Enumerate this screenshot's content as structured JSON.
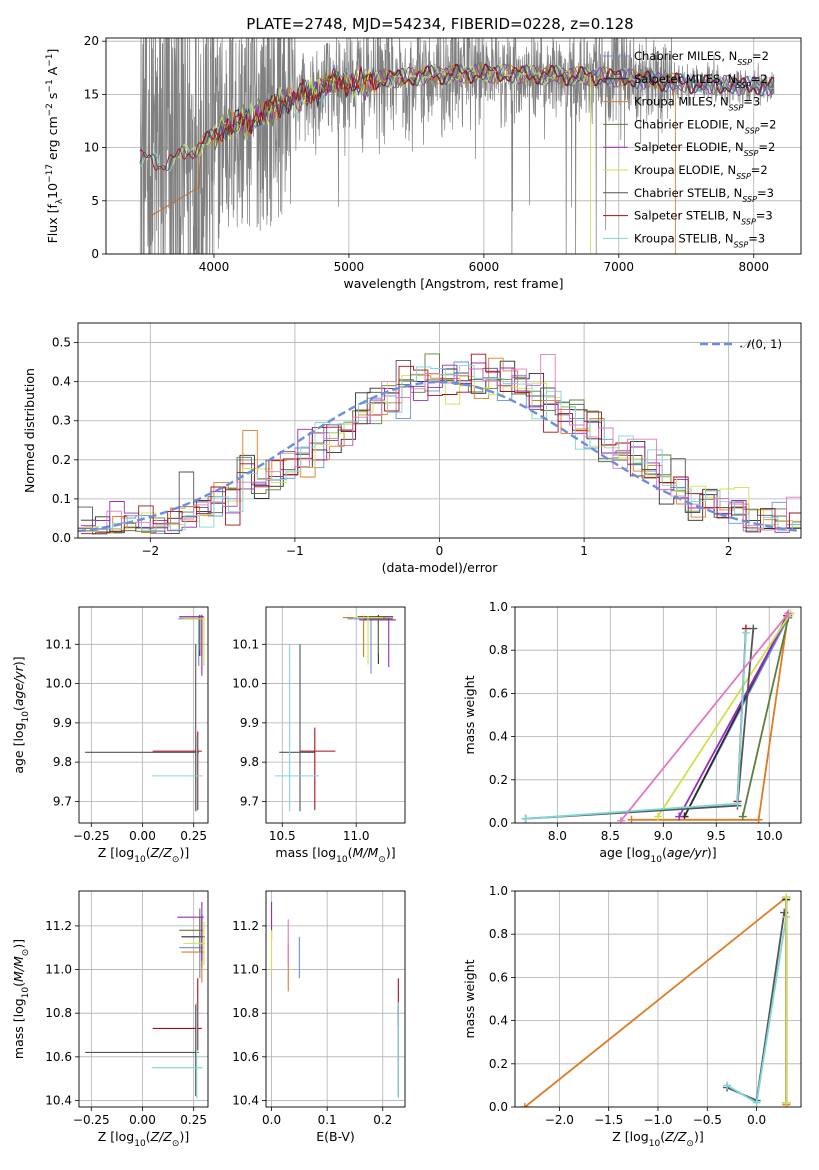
{
  "figure": {
    "title": "PLATE=2748, MJD=54234, FIBERID=0228, z=0.128"
  },
  "colors": {
    "Chabrier MILES": "#6a8fdc",
    "Salpeter MILES": "#2b2b2b",
    "Kroupa MILES": "#e07b24",
    "Chabrier ELODIE": "#5b7f3a",
    "Salpeter ELODIE": "#9a2bbd",
    "Kroupa ELODIE": "#cfe24a",
    "Chabrier STELIB": "#555555",
    "Salpeter STELIB": "#a3101a",
    "Kroupa STELIB": "#7fd6d6",
    "data": "#808080",
    "normal": "#6a8fdc"
  },
  "chart_data": [
    {
      "id": "spectrum",
      "type": "line",
      "xlabel": "wavelength [Angstrom, rest frame]",
      "ylabel": "Flux [f_λ 10^-17 erg cm^-2 s^-1 A^-1]",
      "xlim": [
        3200,
        8350
      ],
      "ylim": [
        0,
        20.3
      ],
      "xticks": [
        4000,
        5000,
        6000,
        7000,
        8000
      ],
      "yticks": [
        0,
        5,
        10,
        15,
        20
      ],
      "legend_position": "top-right",
      "legend": [
        "Chabrier MILES, N_SSP=2",
        "Salpeter MILES, N_SSP=2",
        "Kroupa MILES, N_SSP=3",
        "Chabrier ELODIE, N_SSP=2",
        "Salpeter ELODIE, N_SSP=2",
        "Kroupa ELODIE, N_SSP=2",
        "Chabrier STELIB, N_SSP=3",
        "Salpeter STELIB, N_SSP=3",
        "Kroupa STELIB, N_SSP=3"
      ],
      "data_range": [
        3450,
        8150
      ],
      "model_continuum": {
        "x": [
          3450,
          3600,
          3700,
          3800,
          3900,
          4000,
          4100,
          4300,
          4500,
          4700,
          4900,
          5100,
          5300,
          5600,
          6000,
          6500,
          7000,
          7500,
          8000,
          8150
        ],
        "y": [
          9.0,
          8.5,
          8.8,
          9.5,
          10.2,
          11.0,
          12.0,
          12.8,
          14.2,
          15.0,
          16.2,
          16.0,
          16.5,
          16.8,
          17.0,
          16.8,
          16.6,
          16.0,
          15.8,
          15.7
        ]
      },
      "model_start_x": {
        "Kroupa STELIB": 3450,
        "Chabrier MILES": 3520,
        "Salpeter MILES": 3520,
        "Kroupa MILES": 3520,
        "Chabrier ELODIE": 4000,
        "Salpeter ELODIE": 4000,
        "Kroupa ELODIE": 3700,
        "Chabrier STELIB": 3450,
        "Salpeter STELIB": 3450
      },
      "model_cut_x": {
        "Kroupa ELODIE": 6790,
        "Kroupa MILES": 7420
      }
    },
    {
      "id": "residuals",
      "type": "histogram",
      "xlabel": "(data-model)/error",
      "ylabel": "Normed distribution",
      "xlim": [
        -2.5,
        2.5
      ],
      "ylim": [
        0,
        0.55
      ],
      "xticks": [
        -2,
        -1,
        0,
        1,
        2
      ],
      "yticks": [
        0.0,
        0.1,
        0.2,
        0.3,
        0.4,
        0.5
      ],
      "bin_width": 0.1,
      "legend_position": "top-right",
      "normal_label": "N(0,1)",
      "normal_mu": 0,
      "normal_sigma": 1
    },
    {
      "id": "age-vs-Z",
      "type": "errorbar",
      "xlabel": "Z [log10(Z/Z⊙)]",
      "ylabel": "age [log10(age/yr)]",
      "xlim": [
        -0.31,
        0.32
      ],
      "ylim": [
        9.645,
        10.195
      ],
      "xticks": [
        -0.25,
        0.0,
        0.25
      ],
      "xticklabels": [
        "−0.25",
        "0.00",
        "0.25"
      ],
      "yticks": [
        9.7,
        9.8,
        9.9,
        10.0,
        10.1
      ],
      "points": [
        {
          "model": "Chabrier MILES",
          "x": 0.275,
          "y": 10.165,
          "xerr": [
            0.1,
            0.015
          ],
          "yerr": [
            0.12,
            0.005
          ]
        },
        {
          "model": "Salpeter MILES",
          "x": 0.28,
          "y": 10.17,
          "xerr": [
            0.1,
            0.015
          ],
          "yerr": [
            0.1,
            0.005
          ]
        },
        {
          "model": "Kroupa MILES",
          "x": 0.29,
          "y": 10.17,
          "xerr": [
            0.1,
            0.01
          ],
          "yerr": [
            0.1,
            0.005
          ]
        },
        {
          "model": "Chabrier ELODIE",
          "x": 0.28,
          "y": 10.165,
          "xerr": [
            0.08,
            0.015
          ],
          "yerr": [
            0.08,
            0.005
          ]
        },
        {
          "model": "Salpeter ELODIE",
          "x": 0.29,
          "y": 10.17,
          "xerr": [
            0.1,
            0.01
          ],
          "yerr": [
            0.15,
            0.005
          ]
        },
        {
          "model": "Kroupa ELODIE",
          "x": 0.3,
          "y": 10.165,
          "xerr": [
            0.1,
            0.005
          ],
          "yerr": [
            0.12,
            0.005
          ]
        },
        {
          "model": "Chabrier STELIB",
          "x": 0.26,
          "y": 9.825,
          "xerr": [
            0.54,
            0.015
          ],
          "yerr": [
            0.15,
            0.275
          ]
        },
        {
          "model": "Salpeter STELIB",
          "x": 0.27,
          "y": 9.828,
          "xerr": [
            0.22,
            0.02
          ],
          "yerr": [
            0.15,
            0.05
          ]
        },
        {
          "model": "Kroupa STELIB",
          "x": 0.265,
          "y": 9.765,
          "xerr": [
            0.22,
            0.03
          ],
          "yerr": [
            0.09,
            0.1
          ]
        }
      ]
    },
    {
      "id": "age-vs-mass",
      "type": "errorbar",
      "xlabel": "mass [log10(M/M⊙)]",
      "ylabel": "",
      "xlim": [
        10.39,
        11.33
      ],
      "ylim": [
        9.645,
        10.195
      ],
      "xticks": [
        10.5,
        11.0
      ],
      "xticklabels": [
        "10.5",
        "11.0"
      ],
      "yticks": [
        9.7,
        9.8,
        9.9,
        10.0,
        10.1
      ],
      "points": [
        {
          "model": "Chabrier MILES",
          "x": 11.1,
          "y": 10.165,
          "xerr": [
            0.16,
            0.14
          ],
          "yerr": [
            0.14,
            0.005
          ]
        },
        {
          "model": "Salpeter MILES",
          "x": 11.15,
          "y": 10.17,
          "xerr": [
            0.14,
            0.1
          ],
          "yerr": [
            0.12,
            0.005
          ]
        },
        {
          "model": "Kroupa MILES",
          "x": 11.05,
          "y": 10.168,
          "xerr": [
            0.14,
            0.15
          ],
          "yerr": [
            0.1,
            0.005
          ]
        },
        {
          "model": "Chabrier ELODIE",
          "x": 11.15,
          "y": 10.165,
          "xerr": [
            0.1,
            0.1
          ],
          "yerr": [
            0.09,
            0.005
          ]
        },
        {
          "model": "Salpeter ELODIE",
          "x": 11.22,
          "y": 10.162,
          "xerr": [
            0.2,
            0.05
          ],
          "yerr": [
            0.12,
            0.005
          ]
        },
        {
          "model": "Kroupa ELODIE",
          "x": 11.08,
          "y": 10.168,
          "xerr": [
            0.1,
            0.1
          ],
          "yerr": [
            0.12,
            0.005
          ]
        },
        {
          "model": "Chabrier STELIB",
          "x": 10.62,
          "y": 9.825,
          "xerr": [
            0.14,
            0.1
          ],
          "yerr": [
            0.15,
            0.275
          ]
        },
        {
          "model": "Salpeter STELIB",
          "x": 10.72,
          "y": 9.828,
          "xerr": [
            0.1,
            0.14
          ],
          "yerr": [
            0.15,
            0.06
          ]
        },
        {
          "model": "Kroupa STELIB",
          "x": 10.55,
          "y": 9.765,
          "xerr": [
            0.1,
            0.2
          ],
          "yerr": [
            0.09,
            0.335
          ]
        }
      ]
    },
    {
      "id": "mass-weight-vs-age",
      "type": "line",
      "xlabel": "age [log10(age/yr)]",
      "ylabel": "mass weight",
      "xlim": [
        7.6,
        10.3
      ],
      "ylim": [
        0,
        1
      ],
      "xticks": [
        8.0,
        8.5,
        9.0,
        9.5,
        10.0
      ],
      "xticklabels": [
        "8.0",
        "8.5",
        "9.0",
        "9.5",
        "10.0"
      ],
      "yticks": [
        0.0,
        0.2,
        0.4,
        0.6,
        0.8,
        1.0
      ],
      "series": [
        {
          "model": "Chabrier MILES",
          "x": [
            9.2,
            10.2
          ],
          "y": [
            0.03,
            0.97
          ]
        },
        {
          "model": "Salpeter MILES",
          "x": [
            9.2,
            10.17
          ],
          "y": [
            0.03,
            0.96
          ]
        },
        {
          "model": "Kroupa MILES",
          "x": [
            8.7,
            9.9,
            10.18
          ],
          "y": [
            0.015,
            0.015,
            0.97
          ]
        },
        {
          "model": "Chabrier ELODIE",
          "x": [
            9.75,
            10.18
          ],
          "y": [
            0.03,
            0.95
          ]
        },
        {
          "model": "Salpeter ELODIE",
          "x": [
            9.15,
            10.18
          ],
          "y": [
            0.03,
            0.96
          ]
        },
        {
          "model": "Kroupa ELODIE",
          "x": [
            8.95,
            10.2
          ],
          "y": [
            0.03,
            0.97
          ]
        },
        {
          "model": "Chabrier STELIB",
          "x": [
            7.7,
            9.7,
            9.85
          ],
          "y": [
            0.02,
            0.08,
            0.9
          ]
        },
        {
          "model": "Salpeter STELIB",
          "x": [
            9.7,
            9.78
          ],
          "y": [
            0.1,
            0.9
          ]
        },
        {
          "model": "Kroupa STELIB",
          "x": [
            7.7,
            9.7,
            9.78
          ],
          "y": [
            0.02,
            0.09,
            0.88
          ]
        },
        {
          "model": "Pink",
          "x": [
            8.6,
            10.18
          ],
          "y": [
            0.01,
            0.97
          ]
        }
      ]
    },
    {
      "id": "mass-vs-Z",
      "type": "errorbar",
      "xlabel": "Z [log10(Z/Z⊙)]",
      "ylabel": "mass [log10(M/M⊙)]",
      "xlim": [
        -0.31,
        0.32
      ],
      "ylim": [
        10.37,
        11.36
      ],
      "xticks": [
        -0.25,
        0.0,
        0.25
      ],
      "xticklabels": [
        "−0.25",
        "0.00",
        "0.25"
      ],
      "yticks": [
        10.4,
        10.6,
        10.8,
        11.0,
        11.2
      ],
      "points": [
        {
          "model": "Chabrier MILES",
          "x": 0.28,
          "y": 11.1,
          "xerr": [
            0.1,
            0.015
          ],
          "yerr": [
            0.14,
            0.14
          ]
        },
        {
          "model": "Salpeter MILES",
          "x": 0.29,
          "y": 11.15,
          "xerr": [
            0.1,
            0.015
          ],
          "yerr": [
            0.14,
            0.1
          ]
        },
        {
          "model": "Kroupa MILES",
          "x": 0.29,
          "y": 11.08,
          "xerr": [
            0.1,
            0.01
          ],
          "yerr": [
            0.14,
            0.14
          ]
        },
        {
          "model": "Chabrier ELODIE",
          "x": 0.28,
          "y": 11.18,
          "xerr": [
            0.1,
            0.015
          ],
          "yerr": [
            0.1,
            0.1
          ]
        },
        {
          "model": "Salpeter ELODIE",
          "x": 0.29,
          "y": 11.24,
          "xerr": [
            0.12,
            0.01
          ],
          "yerr": [
            0.2,
            0.07
          ]
        },
        {
          "model": "Kroupa ELODIE",
          "x": 0.3,
          "y": 11.12,
          "xerr": [
            0.1,
            0.005
          ],
          "yerr": [
            0.1,
            0.1
          ]
        },
        {
          "model": "Chabrier STELIB",
          "x": 0.26,
          "y": 10.62,
          "xerr": [
            0.54,
            0.015
          ],
          "yerr": [
            0.2,
            0.22
          ]
        },
        {
          "model": "Salpeter STELIB",
          "x": 0.27,
          "y": 10.73,
          "xerr": [
            0.22,
            0.02
          ],
          "yerr": [
            0.1,
            0.23
          ]
        },
        {
          "model": "Kroupa STELIB",
          "x": 0.265,
          "y": 10.55,
          "xerr": [
            0.22,
            0.03
          ],
          "yerr": [
            0.14,
            0.3
          ]
        }
      ]
    },
    {
      "id": "mass-vs-EBV",
      "type": "errorbar",
      "xlabel": "E(B-V)",
      "ylabel": "",
      "xlim": [
        -0.01,
        0.24
      ],
      "ylim": [
        10.37,
        11.36
      ],
      "xticks": [
        0.0,
        0.1,
        0.2
      ],
      "xticklabels": [
        "0.0",
        "0.1",
        "0.2"
      ],
      "yticks": [
        10.4,
        10.6,
        10.8,
        11.0,
        11.2
      ],
      "points": [
        {
          "model": "Chabrier MILES",
          "x": 0.05,
          "y": 11.1,
          "yerr": [
            0.14,
            0.05
          ]
        },
        {
          "model": "Kroupa MILES",
          "x": 0.03,
          "y": 11.0,
          "yerr": [
            0.1,
            0.12
          ]
        },
        {
          "model": "Salpeter ELODIE",
          "x": 0.0,
          "y": 11.24,
          "yerr": [
            0.1,
            0.07
          ]
        },
        {
          "model": "Kroupa ELODIE",
          "x": 0.0,
          "y": 11.08,
          "yerr": [
            0.1,
            0.1
          ]
        },
        {
          "model": "Pink",
          "x": 0.03,
          "y": 11.12,
          "yerr": [
            0.1,
            0.11
          ]
        },
        {
          "model": "Chabrier STELIB",
          "x": 0.228,
          "y": 10.62,
          "yerr": [
            0.2,
            0.22
          ]
        },
        {
          "model": "Salpeter STELIB",
          "x": 0.228,
          "y": 10.84,
          "yerr": [
            0.1,
            0.12
          ]
        },
        {
          "model": "Kroupa STELIB",
          "x": 0.228,
          "y": 10.55,
          "yerr": [
            0.14,
            0.3
          ]
        }
      ]
    },
    {
      "id": "mass-weight-vs-Z",
      "type": "line",
      "xlabel": "Z [log10(Z/Z⊙)]",
      "ylabel": "mass weight",
      "xlim": [
        -2.45,
        0.45
      ],
      "ylim": [
        0,
        1
      ],
      "xticks": [
        -2.0,
        -1.5,
        -1.0,
        -0.5,
        0.0
      ],
      "xticklabels": [
        "−2.0",
        "−1.5",
        "−1.0",
        "−0.5",
        "0.0"
      ],
      "yticks": [
        0.0,
        0.2,
        0.4,
        0.6,
        0.8,
        1.0
      ],
      "series": [
        {
          "model": "Kroupa MILES",
          "x": [
            -2.35,
            0.3,
            0.3
          ],
          "y": [
            0.0,
            0.97,
            0.01
          ]
        },
        {
          "model": "Chabrier MILES",
          "x": [
            0.3,
            0.3
          ],
          "y": [
            0.97,
            0.02
          ]
        },
        {
          "model": "Salpeter MILES",
          "x": [
            0.3,
            0.3
          ],
          "y": [
            0.96,
            0.02
          ]
        },
        {
          "model": "Chabrier STELIB",
          "x": [
            -0.3,
            0.0,
            0.28
          ],
          "y": [
            0.09,
            0.03,
            0.9
          ]
        },
        {
          "model": "Kroupa STELIB",
          "x": [
            -0.3,
            0.0,
            0.3
          ],
          "y": [
            0.1,
            0.02,
            0.88
          ]
        },
        {
          "model": "Salpeter ELODIE",
          "x": [
            0.3,
            0.3
          ],
          "y": [
            0.97,
            0.02
          ]
        },
        {
          "model": "Kroupa ELODIE",
          "x": [
            0.3,
            0.3
          ],
          "y": [
            0.97,
            0.02
          ]
        }
      ]
    }
  ]
}
